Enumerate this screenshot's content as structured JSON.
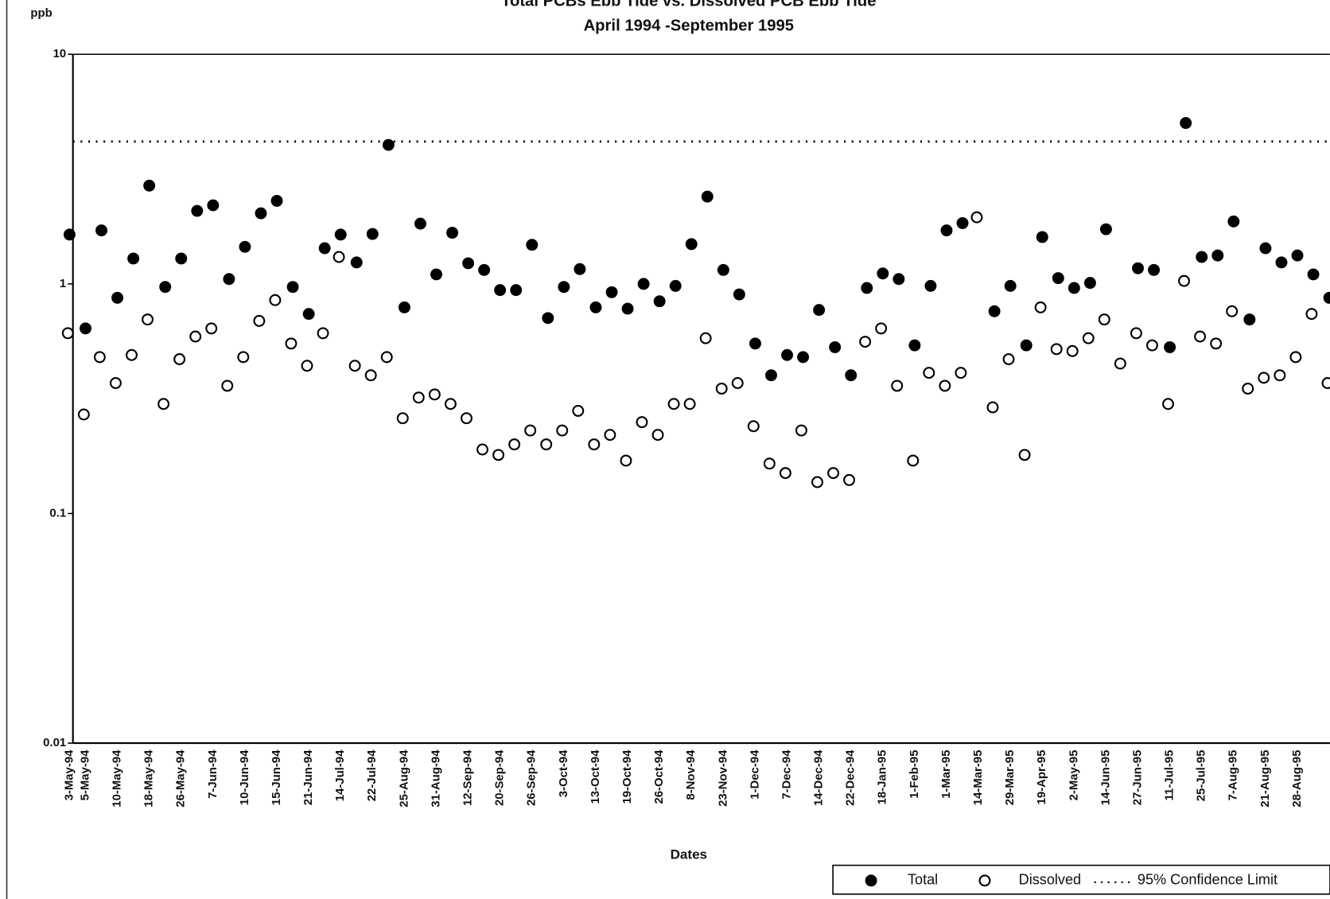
{
  "chart_data": {
    "type": "scatter",
    "title": "Total PCBs Ebb Tide vs. Dissolved PCB Ebb Tide",
    "subtitle": "April 1994 -September 1995",
    "y_label": "ppb",
    "x_label": "Dates",
    "log_y": true,
    "ylim": [
      0.01,
      10
    ],
    "yticks": [
      0.01,
      0.1,
      1,
      10
    ],
    "grid": false,
    "legend": "bottom-right",
    "categories": [
      "3-May-94",
      "5-May-94",
      null,
      "10-May-94",
      null,
      "18-May-94",
      null,
      "26-May-94",
      null,
      "7-Jun-94",
      null,
      "10-Jun-94",
      null,
      "15-Jun-94",
      null,
      "21-Jun-94",
      null,
      "14-Jul-94",
      null,
      "22-Jul-94",
      null,
      "25-Aug-94",
      null,
      "31-Aug-94",
      null,
      "12-Sep-94",
      null,
      "20-Sep-94",
      null,
      "26-Sep-94",
      null,
      "3-Oct-94",
      null,
      "13-Oct-94",
      null,
      "19-Oct-94",
      null,
      "26-Oct-94",
      null,
      "8-Nov-94",
      null,
      "23-Nov-94",
      null,
      "1-Dec-94",
      null,
      "7-Dec-94",
      null,
      "14-Dec-94",
      null,
      "22-Dec-94",
      null,
      "18-Jan-95",
      null,
      "1-Feb-95",
      null,
      "1-Mar-95",
      null,
      "14-Mar-95",
      null,
      "29-Mar-95",
      null,
      "19-Apr-95",
      null,
      "2-May-95",
      null,
      "14-Jun-95",
      null,
      "27-Jun-95",
      null,
      "11-Jul-95",
      null,
      "25-Jul-95",
      null,
      "7-Aug-95",
      null,
      "21-Aug-95",
      null,
      "28-Aug-95",
      null,
      null
    ],
    "series": [
      {
        "name": "Total",
        "color": "#000000",
        "marker": "filled",
        "values": [
          1.64,
          0.64,
          1.71,
          0.87,
          1.29,
          2.68,
          0.97,
          1.29,
          2.08,
          2.2,
          1.05,
          1.45,
          2.03,
          2.3,
          0.97,
          0.74,
          1.43,
          1.64,
          1.24,
          1.65,
          4.03,
          0.79,
          1.83,
          1.1,
          1.67,
          1.23,
          1.15,
          0.94,
          0.94,
          1.48,
          0.71,
          0.97,
          1.16,
          0.79,
          0.92,
          0.78,
          1.0,
          0.84,
          0.98,
          1.49,
          2.4,
          1.15,
          0.9,
          0.55,
          0.4,
          0.49,
          0.48,
          0.77,
          0.53,
          0.4,
          0.96,
          1.11,
          1.05,
          0.54,
          0.98,
          1.71,
          1.84,
          null,
          0.76,
          0.98,
          0.54,
          1.6,
          1.06,
          0.96,
          1.01,
          1.73,
          null,
          1.17,
          1.15,
          0.53,
          5.02,
          1.31,
          1.33,
          1.87,
          0.7,
          1.43,
          1.24,
          1.33,
          1.1,
          0.87
        ]
      },
      {
        "name": "Dissolved",
        "color": "#000000",
        "marker": "open",
        "values": [
          0.61,
          0.27,
          0.48,
          0.37,
          0.49,
          0.7,
          0.3,
          0.47,
          0.59,
          0.64,
          0.36,
          0.48,
          0.69,
          0.85,
          0.55,
          0.44,
          0.61,
          1.31,
          0.44,
          0.4,
          0.48,
          0.26,
          0.32,
          0.33,
          0.3,
          0.26,
          0.19,
          0.18,
          0.2,
          0.23,
          0.2,
          0.23,
          0.28,
          0.2,
          0.22,
          0.17,
          0.25,
          0.22,
          0.3,
          0.3,
          0.58,
          0.35,
          0.37,
          0.24,
          0.165,
          0.15,
          0.23,
          0.137,
          0.15,
          0.14,
          0.56,
          0.64,
          0.36,
          0.17,
          0.41,
          0.36,
          0.41,
          1.95,
          0.29,
          0.47,
          0.18,
          0.79,
          0.52,
          0.51,
          0.58,
          0.7,
          0.45,
          0.61,
          0.54,
          0.3,
          1.03,
          0.59,
          0.55,
          0.76,
          0.35,
          0.39,
          0.4,
          0.48,
          0.74,
          0.37
        ]
      }
    ],
    "confidence_limit": {
      "name": "95% Confidence Limit",
      "value": 4.17,
      "color": "#000000"
    }
  }
}
